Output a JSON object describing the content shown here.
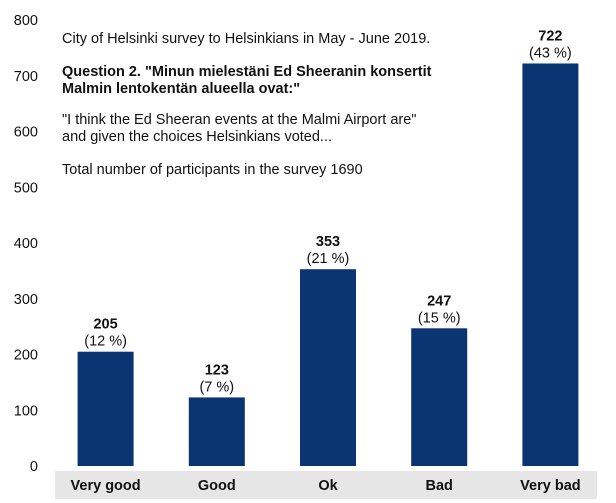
{
  "chart_data": {
    "type": "bar",
    "categories": [
      "Very good",
      "Good",
      "Ok",
      "Bad",
      "Very bad"
    ],
    "values": [
      205,
      123,
      353,
      247,
      722
    ],
    "percent_labels": [
      "(12 %)",
      "(7 %)",
      "(21 %)",
      "(15 %)",
      "(43 %)"
    ],
    "ylim": [
      0,
      800
    ],
    "yticks": [
      0,
      100,
      200,
      300,
      400,
      500,
      600,
      700,
      800
    ],
    "grid": false,
    "bar_color": "#0b3473",
    "x_band_color": "#e6e6e6",
    "annotations": {
      "source": "City of Helsinki survey to Helsinkians in May - June 2019.",
      "question_line1": "Question 2. \"Minun mielestäni Ed Sheeranin konsertit",
      "question_line2": "Malmin lentokentän alueella ovat:\"",
      "translation_line1": "\"I think the Ed Sheeran events at the Malmi Airport are\"",
      "translation_line2": "and given the choices Helsinkians voted...",
      "total": "Total number of participants in the survey 1690"
    }
  }
}
